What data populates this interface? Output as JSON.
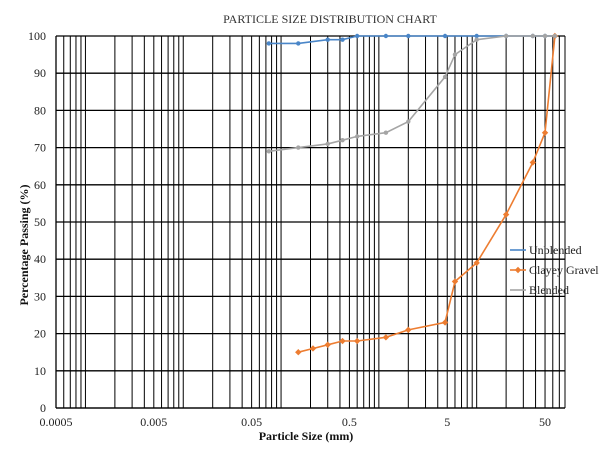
{
  "chart_data": {
    "type": "scatter",
    "title": "PARTICLE SIZE DISTRIBUTION CHART",
    "xlabel": "Particle Size (mm)",
    "ylabel": "Percentage Passing (%)",
    "xscale": "log",
    "xlim": [
      0.0005,
      80
    ],
    "ylim": [
      0,
      100
    ],
    "x_ticks": [
      "0.0005",
      "0.005",
      "0.05",
      "0.5",
      "5",
      "50"
    ],
    "y_ticks": [
      "0",
      "10",
      "20",
      "30",
      "40",
      "50",
      "60",
      "70",
      "80",
      "90",
      "100"
    ],
    "grid": true,
    "legend_position": "right",
    "series": [
      {
        "name": "Unblended",
        "color": "#4a86c8",
        "marker": "circle",
        "x": [
          0.075,
          0.15,
          0.3,
          0.425,
          0.6,
          1.18,
          2.0,
          4.75,
          10,
          20,
          37.5,
          50,
          63
        ],
        "y": [
          98,
          98,
          99,
          99,
          100,
          100,
          100,
          100,
          100,
          100,
          100,
          100,
          100
        ]
      },
      {
        "name": "Clayey Gravel",
        "color": "#ed7d31",
        "marker": "diamond",
        "x": [
          0.15,
          0.212,
          0.3,
          0.425,
          0.6,
          1.18,
          2.0,
          4.75,
          6.0,
          10,
          20,
          37.5,
          50,
          63
        ],
        "y": [
          15,
          16,
          17,
          18,
          18,
          19,
          21,
          23,
          34,
          39,
          52,
          66,
          74,
          100
        ]
      },
      {
        "name": "Blended",
        "color": "#a5a5a5",
        "marker": "circle",
        "x": [
          0.075,
          0.15,
          0.3,
          0.425,
          0.6,
          1.18,
          2.0,
          4.75,
          6.0,
          10,
          20,
          37.5,
          50,
          63
        ],
        "y": [
          69,
          70,
          71,
          72,
          73,
          74,
          77,
          89,
          95,
          99,
          100,
          100,
          100,
          100
        ]
      }
    ]
  }
}
